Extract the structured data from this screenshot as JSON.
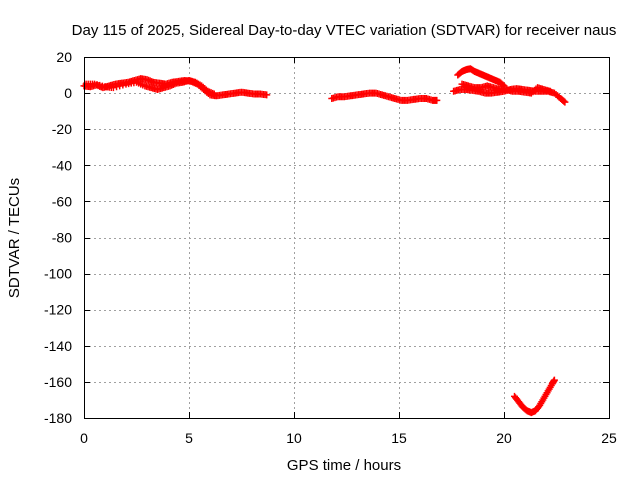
{
  "chart_data": {
    "type": "scatter",
    "title": "Day 115 of 2025, Sidereal Day-to-day VTEC variation (SDTVAR) for receiver naus",
    "xlabel": "GPS time / hours",
    "ylabel": "SDTVAR / TECUs",
    "xlim": [
      0,
      25
    ],
    "ylim": [
      -180,
      20
    ],
    "xticks": [
      0,
      5,
      10,
      15,
      20,
      25
    ],
    "yticks": [
      20,
      0,
      -20,
      -40,
      -60,
      -80,
      -100,
      -120,
      -140,
      -160,
      -180
    ],
    "grid": true,
    "marker": "+",
    "color": "#ff0000",
    "series": [
      {
        "name": "SDTVAR",
        "segments": [
          [
            [
              0.0,
              4
            ],
            [
              0.3,
              3.5
            ],
            [
              0.6,
              4.5
            ],
            [
              0.9,
              3
            ],
            [
              1.2,
              4
            ],
            [
              1.5,
              5
            ],
            [
              1.8,
              5.5
            ],
            [
              2.1,
              6
            ],
            [
              2.4,
              7
            ],
            [
              2.7,
              8
            ],
            [
              3.0,
              7.5
            ],
            [
              3.3,
              6
            ],
            [
              3.6,
              5.5
            ],
            [
              3.9,
              5
            ],
            [
              4.2,
              6
            ],
            [
              4.5,
              6.5
            ],
            [
              4.8,
              7
            ],
            [
              5.1,
              6.5
            ],
            [
              5.4,
              5
            ],
            [
              5.7,
              2
            ],
            [
              6.0,
              -1
            ],
            [
              6.3,
              -1.5
            ],
            [
              6.6,
              -1
            ],
            [
              6.9,
              -0.5
            ],
            [
              7.2,
              0
            ],
            [
              7.5,
              0.5
            ],
            [
              7.8,
              0
            ],
            [
              8.1,
              -0.5
            ],
            [
              8.4,
              -0.5
            ],
            [
              8.7,
              -1
            ]
          ],
          [
            [
              0.1,
              5
            ],
            [
              0.5,
              5
            ],
            [
              1.0,
              3.5
            ],
            [
              1.4,
              3
            ],
            [
              2.0,
              5
            ],
            [
              2.5,
              6
            ],
            [
              2.9,
              4
            ],
            [
              3.2,
              3
            ],
            [
              3.5,
              2
            ],
            [
              3.8,
              3
            ],
            [
              4.1,
              4
            ],
            [
              4.4,
              5.5
            ],
            [
              4.7,
              6
            ],
            [
              5.0,
              7
            ],
            [
              5.3,
              6
            ],
            [
              5.6,
              4
            ],
            [
              5.9,
              1
            ],
            [
              6.2,
              -0.5
            ]
          ],
          [
            [
              11.8,
              -3
            ],
            [
              12.1,
              -2
            ],
            [
              12.4,
              -2
            ],
            [
              12.7,
              -1.5
            ],
            [
              13.0,
              -1
            ],
            [
              13.3,
              -0.5
            ],
            [
              13.6,
              0
            ],
            [
              13.9,
              0
            ],
            [
              14.2,
              -1
            ],
            [
              14.5,
              -2
            ],
            [
              14.8,
              -3
            ],
            [
              15.1,
              -4
            ],
            [
              15.4,
              -4
            ],
            [
              15.7,
              -3.5
            ],
            [
              16.0,
              -3
            ],
            [
              16.3,
              -3
            ],
            [
              16.6,
              -4
            ],
            [
              16.8,
              -4
            ]
          ],
          [
            [
              17.8,
              10
            ],
            [
              18.0,
              12
            ],
            [
              18.2,
              13
            ],
            [
              18.4,
              13.5
            ],
            [
              18.6,
              12
            ],
            [
              18.8,
              11
            ],
            [
              19.0,
              10
            ],
            [
              19.2,
              9
            ],
            [
              19.4,
              8
            ],
            [
              19.6,
              7
            ],
            [
              19.8,
              6
            ],
            [
              20.0,
              4
            ]
          ],
          [
            [
              17.6,
              1
            ],
            [
              17.9,
              2
            ],
            [
              18.2,
              2
            ],
            [
              18.5,
              1.5
            ],
            [
              18.8,
              1
            ],
            [
              19.1,
              0
            ],
            [
              19.4,
              0
            ],
            [
              19.7,
              0.5
            ],
            [
              20.0,
              1
            ],
            [
              20.3,
              2
            ],
            [
              20.6,
              2.5
            ],
            [
              20.9,
              2
            ],
            [
              21.2,
              1.5
            ],
            [
              21.5,
              1
            ],
            [
              21.8,
              1
            ],
            [
              22.1,
              1
            ],
            [
              22.4,
              0
            ],
            [
              22.7,
              -3
            ],
            [
              22.9,
              -5
            ]
          ],
          [
            [
              18.0,
              5
            ],
            [
              18.3,
              4
            ],
            [
              18.6,
              3
            ],
            [
              18.9,
              3
            ],
            [
              19.2,
              4
            ],
            [
              19.5,
              3
            ],
            [
              19.8,
              2
            ],
            [
              20.1,
              2
            ],
            [
              20.4,
              1
            ],
            [
              20.7,
              1
            ],
            [
              21.0,
              0.5
            ],
            [
              21.3,
              0
            ],
            [
              21.6,
              3
            ],
            [
              21.9,
              2
            ],
            [
              22.2,
              1
            ]
          ],
          [
            [
              20.5,
              -168
            ],
            [
              20.7,
              -171
            ],
            [
              20.9,
              -174
            ],
            [
              21.1,
              -176
            ],
            [
              21.3,
              -177
            ],
            [
              21.5,
              -176
            ],
            [
              21.7,
              -173
            ],
            [
              21.9,
              -169
            ],
            [
              22.1,
              -165
            ],
            [
              22.3,
              -161
            ],
            [
              22.4,
              -159
            ]
          ]
        ]
      }
    ]
  }
}
